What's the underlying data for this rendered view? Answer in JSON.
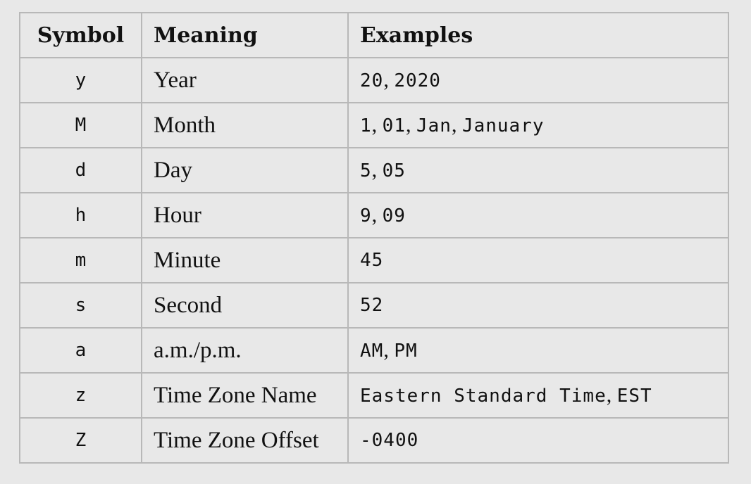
{
  "headers": {
    "symbol": "Symbol",
    "meaning": "Meaning",
    "examples": "Examples"
  },
  "rows": [
    {
      "symbol": "y",
      "meaning": "Year",
      "examples": [
        "20",
        "2020"
      ]
    },
    {
      "symbol": "M",
      "meaning": "Month",
      "examples": [
        "1",
        "01",
        "Jan",
        "January"
      ]
    },
    {
      "symbol": "d",
      "meaning": "Day",
      "examples": [
        "5",
        "05"
      ]
    },
    {
      "symbol": "h",
      "meaning": "Hour",
      "examples": [
        "9",
        "09"
      ]
    },
    {
      "symbol": "m",
      "meaning": "Minute",
      "examples": [
        "45"
      ]
    },
    {
      "symbol": "s",
      "meaning": "Second",
      "examples": [
        "52"
      ]
    },
    {
      "symbol": "a",
      "meaning": "a.m./p.m.",
      "examples": [
        "AM",
        "PM"
      ]
    },
    {
      "symbol": "z",
      "meaning": "Time Zone Name",
      "examples": [
        "Eastern Standard Time",
        "EST"
      ]
    },
    {
      "symbol": "Z",
      "meaning": "Time Zone Offset",
      "examples": [
        "-0400"
      ]
    }
  ],
  "colors": {
    "background": "#e8e8e8",
    "border": "#b8b8b8",
    "text": "#111111"
  }
}
